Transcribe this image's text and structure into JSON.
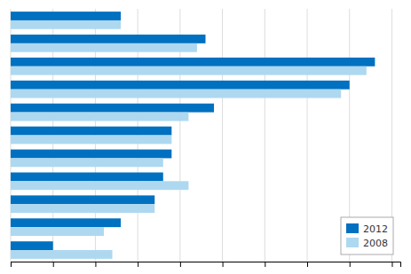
{
  "chart_data": {
    "type": "bar",
    "orientation": "horizontal",
    "categories": [
      null,
      null,
      null,
      null,
      null,
      null,
      null,
      null,
      null,
      null,
      null
    ],
    "series": [
      {
        "name": "2012",
        "color": "#0070C0",
        "values": [
          13,
          23,
          43,
          40,
          24,
          19,
          19,
          18,
          17,
          13,
          5
        ]
      },
      {
        "name": "2008",
        "color": "#ADD8F0",
        "values": [
          13,
          22,
          42,
          39,
          21,
          19,
          18,
          21,
          17,
          11,
          12
        ]
      }
    ],
    "xlim": [
      0,
      46
    ],
    "xticks": [
      0,
      5,
      10,
      15,
      20,
      25,
      30,
      35,
      40,
      45
    ],
    "grid": true,
    "legend": "lower right",
    "tick_labels": false
  }
}
